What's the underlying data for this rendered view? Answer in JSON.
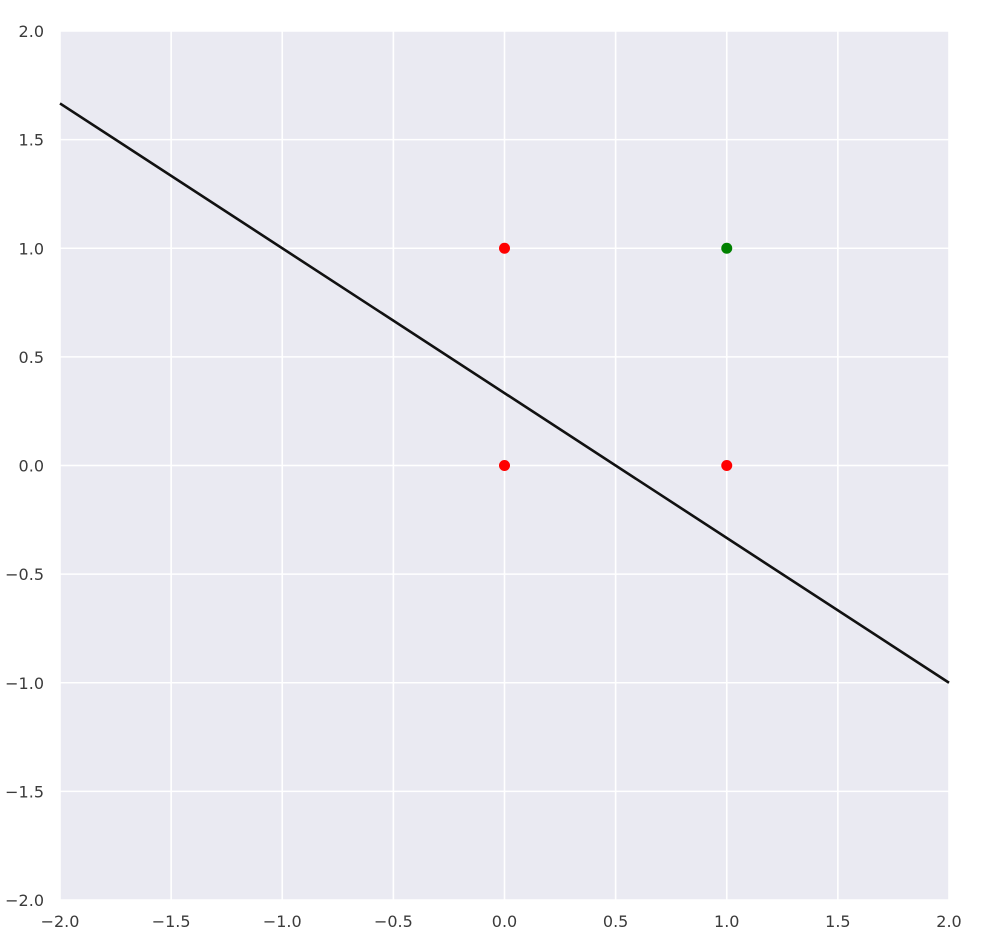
{
  "chart_data": {
    "type": "scatter",
    "title": "",
    "xlabel": "",
    "ylabel": "",
    "xlim": [
      -2.0,
      2.0
    ],
    "ylim": [
      -2.0,
      2.0
    ],
    "grid": true,
    "x_ticks": [
      -2.0,
      -1.5,
      -1.0,
      -0.5,
      0.0,
      0.5,
      1.0,
      1.5,
      2.0
    ],
    "y_ticks": [
      -2.0,
      -1.5,
      -1.0,
      -0.5,
      0.0,
      0.5,
      1.0,
      1.5,
      2.0
    ],
    "x_tick_labels": [
      "−2.0",
      "−1.5",
      "−1.0",
      "−0.5",
      "0.0",
      "0.5",
      "1.0",
      "1.5",
      "2.0"
    ],
    "y_tick_labels": [
      "−2.0",
      "−1.5",
      "−1.0",
      "−0.5",
      "0.0",
      "0.5",
      "1.0",
      "1.5",
      "2.0"
    ],
    "points": [
      {
        "x": 0,
        "y": 0,
        "color": "#ff0000"
      },
      {
        "x": 0,
        "y": 1,
        "color": "#ff0000"
      },
      {
        "x": 1,
        "y": 0,
        "color": "#ff0000"
      },
      {
        "x": 1,
        "y": 1,
        "color": "#008000"
      }
    ],
    "line": {
      "x": [
        -2.0,
        2.0
      ],
      "y": [
        1.6667,
        -1.0
      ],
      "color": "#111111"
    },
    "background_color": "#eaeaf2",
    "grid_color": "#ffffff"
  }
}
